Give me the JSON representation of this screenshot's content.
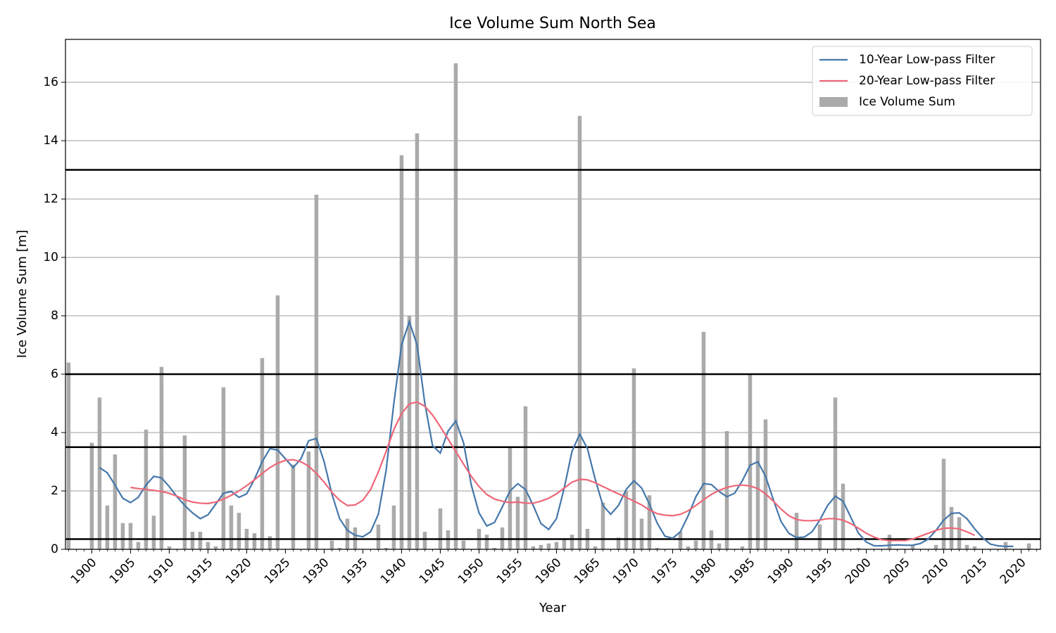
{
  "chart_data": {
    "type": "bar-line",
    "title": "Ice Volume Sum North Sea",
    "x_label": "Year",
    "y_label": "Ice Volume Sum [m]",
    "x": [
      1897,
      1898,
      1899,
      1900,
      1901,
      1902,
      1903,
      1904,
      1905,
      1906,
      1907,
      1908,
      1909,
      1910,
      1911,
      1912,
      1913,
      1914,
      1915,
      1916,
      1917,
      1918,
      1919,
      1920,
      1921,
      1922,
      1923,
      1924,
      1925,
      1926,
      1927,
      1928,
      1929,
      1930,
      1931,
      1932,
      1933,
      1934,
      1935,
      1936,
      1937,
      1938,
      1939,
      1940,
      1941,
      1942,
      1943,
      1944,
      1945,
      1946,
      1947,
      1948,
      1949,
      1950,
      1951,
      1952,
      1953,
      1954,
      1955,
      1956,
      1957,
      1958,
      1959,
      1960,
      1961,
      1962,
      1963,
      1964,
      1965,
      1966,
      1967,
      1968,
      1969,
      1970,
      1971,
      1972,
      1973,
      1974,
      1975,
      1976,
      1977,
      1978,
      1979,
      1980,
      1981,
      1982,
      1983,
      1984,
      1985,
      1986,
      1987,
      1988,
      1989,
      1990,
      1991,
      1992,
      1993,
      1994,
      1995,
      1996,
      1997,
      1998,
      1999,
      2000,
      2001,
      2002,
      2003,
      2004,
      2005,
      2006,
      2007,
      2008,
      2009,
      2010,
      2011,
      2012,
      2013,
      2014,
      2015,
      2016,
      2017,
      2018,
      2019,
      2020,
      2021,
      2022
    ],
    "series": [
      {
        "name": "10-Year Low-pass Filter",
        "kind": "line",
        "color": "#4477aa",
        "values": [
          null,
          null,
          null,
          null,
          2.8,
          2.62,
          2.2,
          1.75,
          1.6,
          1.78,
          2.2,
          2.5,
          2.45,
          2.15,
          1.8,
          1.5,
          1.25,
          1.05,
          1.18,
          1.55,
          1.92,
          1.98,
          1.78,
          1.9,
          2.4,
          3.0,
          3.45,
          3.4,
          3.1,
          2.8,
          3.1,
          3.72,
          3.8,
          3.0,
          1.9,
          1.05,
          0.65,
          0.48,
          0.43,
          0.6,
          1.2,
          2.7,
          5.0,
          7.0,
          7.8,
          7.0,
          5.0,
          3.55,
          3.3,
          4.05,
          4.4,
          3.65,
          2.2,
          1.25,
          0.8,
          0.92,
          1.45,
          2.0,
          2.25,
          2.05,
          1.5,
          0.88,
          0.68,
          1.05,
          2.1,
          3.35,
          3.95,
          3.45,
          2.4,
          1.5,
          1.2,
          1.5,
          2.05,
          2.35,
          2.1,
          1.55,
          0.9,
          0.45,
          0.38,
          0.6,
          1.15,
          1.8,
          2.25,
          2.22,
          1.98,
          1.8,
          1.92,
          2.35,
          2.88,
          3.0,
          2.5,
          1.7,
          0.95,
          0.55,
          0.4,
          0.42,
          0.6,
          1.0,
          1.5,
          1.82,
          1.65,
          1.1,
          0.55,
          0.25,
          0.12,
          0.12,
          0.14,
          0.15,
          0.14,
          0.14,
          0.2,
          0.35,
          0.65,
          1.0,
          1.23,
          1.25,
          1.05,
          0.7,
          0.4,
          0.18,
          0.12,
          0.1,
          0.1,
          null,
          null,
          null
        ]
      },
      {
        "name": "20-Year Low-pass Filter",
        "kind": "line",
        "color": "#ee6677",
        "values": [
          null,
          null,
          null,
          null,
          null,
          null,
          null,
          null,
          2.12,
          2.08,
          2.05,
          2.02,
          1.98,
          1.92,
          1.82,
          1.7,
          1.62,
          1.58,
          1.57,
          1.62,
          1.72,
          1.85,
          2.0,
          2.18,
          2.38,
          2.6,
          2.8,
          2.95,
          3.05,
          3.07,
          3.0,
          2.85,
          2.6,
          2.3,
          1.95,
          1.68,
          1.5,
          1.52,
          1.68,
          2.05,
          2.65,
          3.35,
          4.1,
          4.65,
          4.98,
          5.05,
          4.9,
          4.6,
          4.2,
          3.78,
          3.35,
          2.92,
          2.5,
          2.15,
          1.88,
          1.72,
          1.65,
          1.6,
          1.62,
          1.58,
          1.58,
          1.65,
          1.75,
          1.9,
          2.1,
          2.3,
          2.4,
          2.38,
          2.28,
          2.15,
          2.02,
          1.9,
          1.78,
          1.65,
          1.52,
          1.35,
          1.22,
          1.17,
          1.15,
          1.2,
          1.32,
          1.5,
          1.7,
          1.88,
          2.02,
          2.12,
          2.18,
          2.2,
          2.17,
          2.08,
          1.9,
          1.65,
          1.38,
          1.15,
          1.02,
          0.98,
          0.98,
          1.0,
          1.05,
          1.05,
          1.0,
          0.88,
          0.72,
          0.55,
          0.42,
          0.33,
          0.3,
          0.3,
          0.3,
          0.35,
          0.45,
          0.55,
          0.65,
          0.72,
          0.73,
          0.7,
          0.6,
          0.48,
          null,
          null,
          null,
          null,
          null,
          null,
          null,
          null
        ]
      },
      {
        "name": "Ice Volume Sum",
        "kind": "bar",
        "color": "#aaaaaa",
        "values": [
          6.4,
          0,
          0,
          3.65,
          5.2,
          1.5,
          3.25,
          0.9,
          0.9,
          0.25,
          4.1,
          1.15,
          6.25,
          0.1,
          0,
          3.9,
          0.6,
          0.6,
          0.25,
          0.1,
          5.55,
          1.5,
          1.25,
          0.7,
          0.55,
          6.55,
          0.45,
          8.7,
          0,
          2.9,
          0,
          3.35,
          12.15,
          0,
          0.3,
          0.05,
          1.05,
          0.75,
          0,
          0,
          0.85,
          0.05,
          1.5,
          13.5,
          8.0,
          14.25,
          0.6,
          0,
          1.4,
          0.65,
          16.65,
          0.3,
          0,
          0.7,
          0.5,
          0.05,
          0.75,
          3.5,
          1.8,
          4.9,
          0.1,
          0.15,
          0.2,
          0.25,
          0.35,
          0.5,
          14.85,
          0.7,
          0.1,
          1.6,
          0,
          0.4,
          2.0,
          6.2,
          1.05,
          1.85,
          0.05,
          0,
          0,
          0.6,
          0.1,
          0.3,
          7.45,
          0.65,
          0.2,
          4.05,
          0,
          0.1,
          6.0,
          3.5,
          4.45,
          0,
          0,
          0,
          1.25,
          0,
          0,
          0.85,
          0,
          5.2,
          2.25,
          0,
          0.05,
          0,
          0,
          0,
          0.5,
          0,
          0,
          0.15,
          0,
          0,
          0.15,
          3.1,
          1.45,
          1.1,
          0.15,
          0.1,
          0,
          0,
          0,
          0.25,
          0,
          0,
          0.2,
          0
        ]
      }
    ],
    "hlines": [
      0.35,
      3.5,
      6,
      13
    ],
    "hline_color": "#000000",
    "xlim": [
      1896.6,
      2022.5
    ],
    "ylim": [
      0,
      17.47
    ],
    "xticks": [
      1900,
      1905,
      1910,
      1915,
      1920,
      1925,
      1930,
      1935,
      1940,
      1945,
      1950,
      1955,
      1960,
      1965,
      1970,
      1975,
      1980,
      1985,
      1990,
      1995,
      2000,
      2005,
      2010,
      2015,
      2020
    ],
    "yticks": [
      0,
      2,
      4,
      6,
      8,
      10,
      12,
      14,
      16
    ],
    "grid": "y",
    "legend": "upper right"
  }
}
